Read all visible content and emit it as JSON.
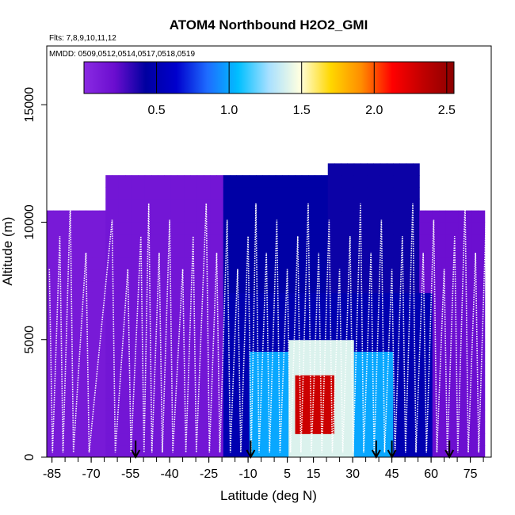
{
  "chart_data": {
    "type": "heatmap",
    "title": "ATOM4 Northbound H2O2_GMI",
    "flights_note": "Flts: 7,8,9,10,11,12",
    "dates_note": "MMDD: 0509,0512,0514,0517,0518,0519",
    "xlabel": "Latitude (deg N)",
    "ylabel": "Altitude (m)",
    "xlim": [
      -87,
      83
    ],
    "ylim": [
      0,
      17500
    ],
    "x_ticks": [
      -85,
      -70,
      -55,
      -40,
      -25,
      -10,
      5,
      15,
      30,
      45,
      60,
      75
    ],
    "y_ticks": [
      0,
      5000,
      10000,
      15000
    ],
    "colorbar": {
      "min": 0,
      "max": 2.55,
      "ticks": [
        "0.5",
        "1.0",
        "1.5",
        "2.0",
        "2.5"
      ],
      "tick_values": [
        0.5,
        1.0,
        1.5,
        2.0,
        2.5
      ],
      "colors": [
        "#8a2be2",
        "#6a0dcf",
        "#0000a0",
        "#0000cd",
        "#1e6cff",
        "#00bfff",
        "#a8e0ff",
        "#ffffe0",
        "#ffd700",
        "#ff8c00",
        "#ff0000",
        "#c00000",
        "#8b0000"
      ]
    },
    "field_regions": [
      {
        "lat_range": [
          -87,
          -65
        ],
        "alt_range": [
          0,
          10500
        ],
        "value": 0.12
      },
      {
        "lat_range": [
          -65,
          -20
        ],
        "alt_range": [
          0,
          11800
        ],
        "value": 0.15
      },
      {
        "lat_range": [
          -20,
          20
        ],
        "alt_range": [
          0,
          11800
        ],
        "value": 0.45
      },
      {
        "lat_range": [
          20,
          55
        ],
        "alt_range": [
          0,
          12300
        ],
        "value": 0.4
      },
      {
        "lat_range": [
          55,
          80
        ],
        "alt_range": [
          0,
          10500
        ],
        "value": 0.2
      },
      {
        "lat_range": [
          -20,
          60
        ],
        "alt_range": [
          0,
          7000
        ],
        "value": 0.5
      },
      {
        "lat_range": [
          -10,
          45
        ],
        "alt_range": [
          0,
          4500
        ],
        "value": 1.0
      },
      {
        "lat_range": [
          5,
          30
        ],
        "alt_range": [
          0,
          5000
        ],
        "value": 1.4
      },
      {
        "lat_range": [
          8,
          22
        ],
        "alt_range": [
          1000,
          3500
        ],
        "value": 2.3
      }
    ],
    "flight_track_latitudes": [
      -86,
      -82,
      -78,
      -72,
      -62,
      -56,
      -51,
      -48,
      -44,
      -40,
      -35,
      -31,
      -26,
      -22,
      -18,
      -14,
      -10,
      -7,
      -3,
      1,
      5,
      9,
      13,
      17,
      21,
      25,
      29,
      33,
      37,
      41,
      45,
      49,
      53,
      57,
      61,
      65,
      69,
      73,
      77,
      81
    ],
    "arrow_latitudes": [
      -53,
      -9,
      39,
      45,
      67
    ]
  }
}
